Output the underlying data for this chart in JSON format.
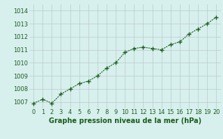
{
  "x": [
    0,
    1,
    2,
    3,
    4,
    5,
    6,
    7,
    8,
    9,
    10,
    11,
    12,
    13,
    14,
    15,
    16,
    17,
    18,
    19,
    20
  ],
  "y": [
    1006.9,
    1007.2,
    1006.9,
    1007.6,
    1008.0,
    1008.4,
    1008.6,
    1009.0,
    1009.6,
    1010.0,
    1010.8,
    1011.1,
    1011.2,
    1011.1,
    1011.0,
    1011.4,
    1011.6,
    1012.2,
    1012.6,
    1013.0,
    1013.5
  ],
  "line_color": "#1a5c1a",
  "marker_color": "#1a5c1a",
  "bg_color": "#d7f0ee",
  "grid_color": "#b8c8c8",
  "xlabel": "Graphe pression niveau de la mer (hPa)",
  "xlabel_color": "#1a5c1a",
  "xlabel_fontsize": 7,
  "tick_color": "#1a5c1a",
  "tick_fontsize": 6,
  "ylim": [
    1006.5,
    1014.5
  ],
  "yticks": [
    1007,
    1008,
    1009,
    1010,
    1011,
    1012,
    1013,
    1014
  ],
  "xlim": [
    -0.5,
    20.5
  ],
  "xticks": [
    0,
    1,
    2,
    3,
    4,
    5,
    6,
    7,
    8,
    9,
    10,
    11,
    12,
    13,
    14,
    15,
    16,
    17,
    18,
    19,
    20
  ]
}
